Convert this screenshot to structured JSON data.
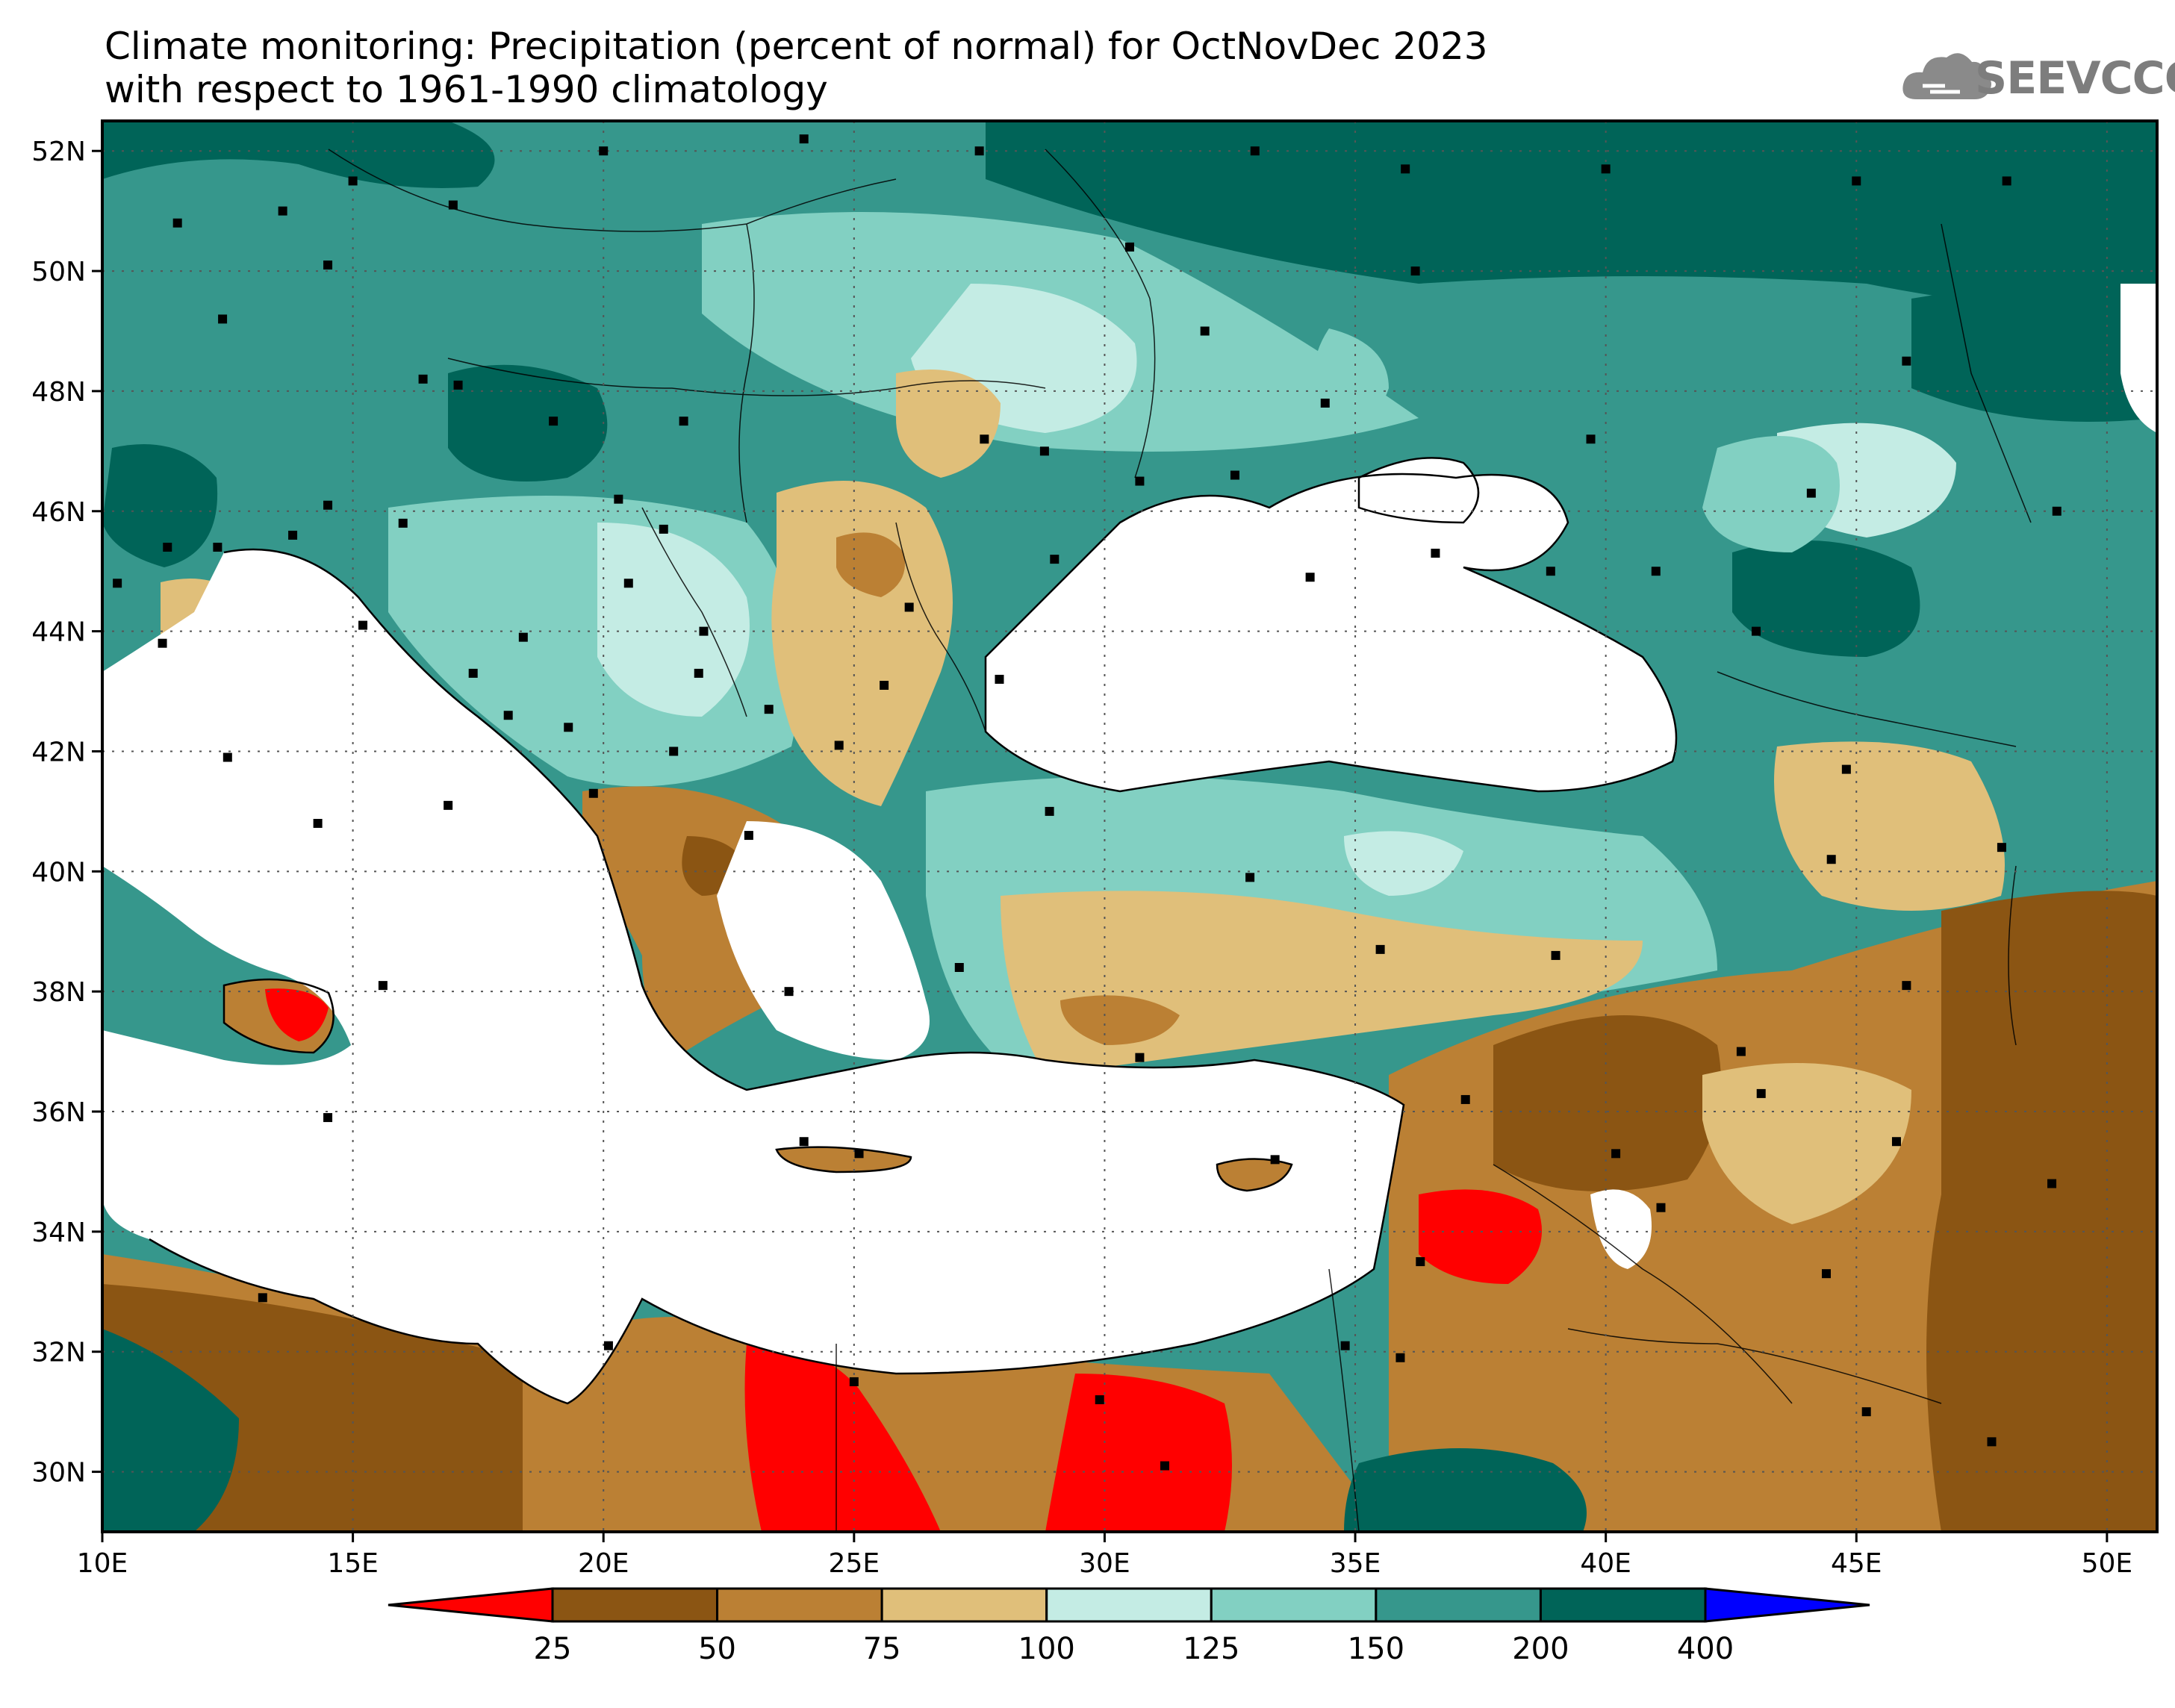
{
  "title_line1": "Climate monitoring: Precipitation (percent of normal) for OctNovDec 2023",
  "title_line2": "with respect to 1961-1990 climatology",
  "logo": {
    "text": "SEEVCCC",
    "icon": "cloud-logo-icon"
  },
  "map": {
    "lon_range": [
      10,
      51
    ],
    "lat_range": [
      29,
      52.5
    ],
    "lat_ticks": [
      {
        "value": 52,
        "label": "52N"
      },
      {
        "value": 50,
        "label": "50N"
      },
      {
        "value": 48,
        "label": "48N"
      },
      {
        "value": 46,
        "label": "46N"
      },
      {
        "value": 44,
        "label": "44N"
      },
      {
        "value": 42,
        "label": "42N"
      },
      {
        "value": 40,
        "label": "40N"
      },
      {
        "value": 38,
        "label": "38N"
      },
      {
        "value": 36,
        "label": "36N"
      },
      {
        "value": 34,
        "label": "34N"
      },
      {
        "value": 32,
        "label": "32N"
      },
      {
        "value": 30,
        "label": "30N"
      }
    ],
    "lon_ticks": [
      {
        "value": 10,
        "label": "10E"
      },
      {
        "value": 15,
        "label": "15E"
      },
      {
        "value": 20,
        "label": "20E"
      },
      {
        "value": 25,
        "label": "25E"
      },
      {
        "value": 30,
        "label": "30E"
      },
      {
        "value": 35,
        "label": "35E"
      },
      {
        "value": 40,
        "label": "40E"
      },
      {
        "value": 45,
        "label": "45E"
      },
      {
        "value": 50,
        "label": "50E"
      }
    ],
    "grid": true
  },
  "colorbar": {
    "colors": [
      "#ff0000",
      "#8b5513",
      "#bb8034",
      "#e0bf7a",
      "#c4ece4",
      "#82d0c2",
      "#36978c",
      "#006458",
      "#0000ff"
    ],
    "labels": [
      "25",
      "50",
      "75",
      "100",
      "125",
      "150",
      "200",
      "400"
    ],
    "extend": "both"
  }
}
